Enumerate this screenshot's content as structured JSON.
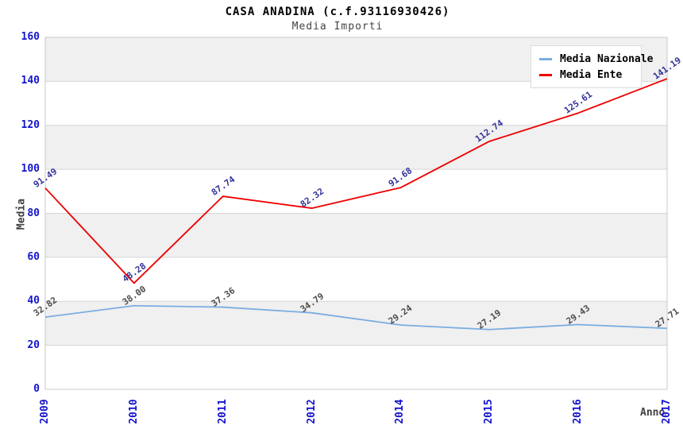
{
  "header": {
    "title": "CASA ANADINA (c.f.93116930426)",
    "subtitle": "Media Importi"
  },
  "chart_data": {
    "type": "line",
    "title": "CASA ANADINA (c.f.93116930426)",
    "subtitle": "Media Importi",
    "xlabel": "Anno",
    "ylabel": "Media",
    "categories": [
      "2009",
      "2010",
      "2011",
      "2012",
      "2014",
      "2015",
      "2016",
      "2017"
    ],
    "series": [
      {
        "name": "Media Nazionale",
        "color": "#7aade0",
        "label_color": "#4d4d4d",
        "values": [
          32.82,
          38.0,
          37.36,
          34.79,
          29.24,
          27.19,
          29.43,
          27.71
        ]
      },
      {
        "name": "Media Ente",
        "color": "#ee0000",
        "label_color": "#333399",
        "values": [
          91.49,
          48.28,
          87.74,
          82.32,
          91.68,
          112.74,
          125.61,
          141.19
        ]
      }
    ],
    "ylim": [
      0,
      160
    ],
    "yticks": [
      0,
      20,
      40,
      60,
      80,
      100,
      120,
      140,
      160
    ],
    "grid": true,
    "band_color": "#f0f0f0",
    "grid_color": "#d6d6d6",
    "plot_border_color": "#c8c8c8",
    "tick_color": "#1414cc",
    "legend_position": "top-right",
    "value_labels_decimals": 2
  }
}
